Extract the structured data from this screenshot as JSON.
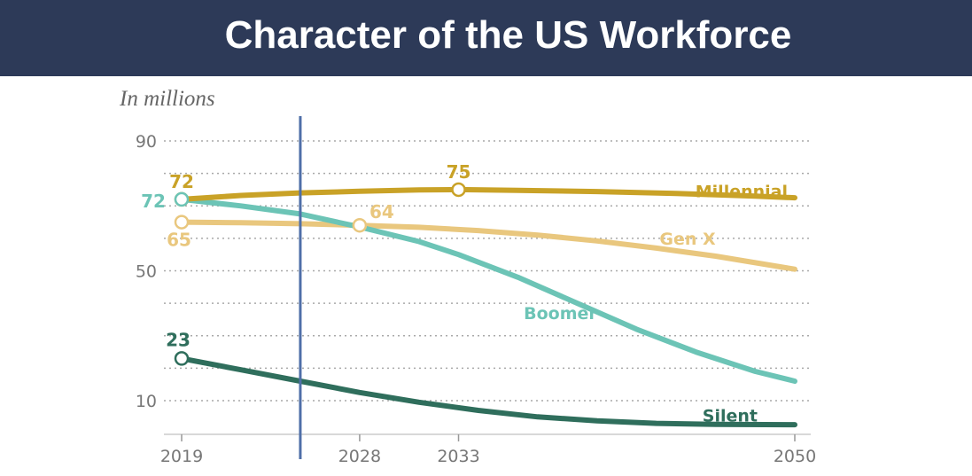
{
  "header": {
    "title": "Character of the US Workforce"
  },
  "chart_data": {
    "type": "line",
    "title": "Character of the US Workforce",
    "ylabel": "In millions",
    "xlabel": "",
    "ylim": [
      0,
      90
    ],
    "xlim": [
      2019,
      2050
    ],
    "yticks": [
      10,
      50,
      90
    ],
    "yticks_labels": [
      "10",
      "50",
      "90"
    ],
    "xticks": [
      2019,
      2028,
      2033,
      2050
    ],
    "xticks_labels": [
      "2019",
      "2028",
      "2033",
      "2050"
    ],
    "grid": true,
    "marker_year": 2025,
    "series": [
      {
        "name": "Millennial",
        "color": "#c9a227",
        "x": [
          2019,
          2022,
          2025,
          2028,
          2031,
          2033,
          2036,
          2040,
          2044,
          2048,
          2050
        ],
        "y": [
          72,
          73.2,
          74,
          74.5,
          74.9,
          75,
          74.8,
          74.4,
          73.8,
          73,
          72.5
        ],
        "points": [
          {
            "x": 2019,
            "y": 72,
            "label": "72"
          },
          {
            "x": 2033,
            "y": 75,
            "label": "75"
          }
        ]
      },
      {
        "name": "Gen X",
        "color": "#e9c77e",
        "x": [
          2019,
          2022,
          2025,
          2028,
          2031,
          2034,
          2037,
          2040,
          2043,
          2046,
          2050
        ],
        "y": [
          65,
          64.8,
          64.5,
          64,
          63.4,
          62.4,
          61,
          59.2,
          57,
          54.5,
          50.5
        ],
        "points": [
          {
            "x": 2019,
            "y": 65,
            "label": "65"
          },
          {
            "x": 2028,
            "y": 64,
            "label": "64"
          }
        ]
      },
      {
        "name": "Boomer",
        "color": "#6cc4b6",
        "x": [
          2019,
          2022,
          2025,
          2028,
          2031,
          2033,
          2036,
          2039,
          2042,
          2045,
          2048,
          2050
        ],
        "y": [
          72,
          70,
          67.5,
          63.5,
          59,
          55,
          48,
          40,
          32,
          25,
          19,
          16
        ],
        "points": [
          {
            "x": 2019,
            "y": 72,
            "label": "72"
          }
        ]
      },
      {
        "name": "Silent",
        "color": "#2f6e5c",
        "x": [
          2019,
          2022,
          2025,
          2028,
          2031,
          2034,
          2037,
          2040,
          2043,
          2046,
          2050
        ],
        "y": [
          23,
          19.5,
          16,
          12.5,
          9.5,
          7,
          5,
          3.8,
          3,
          2.7,
          2.6
        ],
        "points": [
          {
            "x": 2019,
            "y": 23,
            "label": "23"
          }
        ]
      }
    ]
  }
}
